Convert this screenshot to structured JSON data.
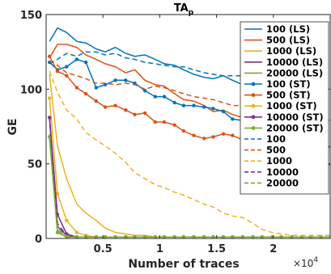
{
  "chart_data": {
    "type": "line",
    "title_main": "TA",
    "title_sub": "p",
    "xlabel": "Number of traces",
    "ylabel": "GE",
    "x_multiplier_base": "×10",
    "x_multiplier_exp": "4",
    "xlim": [
      0,
      25000
    ],
    "ylim": [
      0,
      150
    ],
    "xticks": [
      5000,
      10000,
      15000,
      20000
    ],
    "xtick_labels": [
      "0.5",
      "1",
      "1.5",
      "2"
    ],
    "yticks": [
      0,
      50,
      100,
      150
    ],
    "ytick_labels": [
      "0",
      "50",
      "100",
      "150"
    ],
    "legend_position": "upper-right",
    "series": [
      {
        "name": "100 (LS)",
        "color": "#0072BD",
        "dash": "solid",
        "marker": false,
        "x": [
          300,
          1000,
          1800,
          2700,
          3500,
          4400,
          5200,
          6100,
          7000,
          7800,
          8700,
          9600,
          10400,
          11300,
          12100,
          13000,
          13900,
          14700,
          15600,
          16400,
          17300,
          18200,
          19000,
          19900,
          20700,
          21600,
          22500,
          23300,
          24200,
          25000
        ],
        "y": [
          132,
          141,
          138,
          132,
          131,
          127,
          125,
          128,
          124,
          122,
          123,
          120,
          117,
          116,
          113,
          110,
          108,
          107,
          109,
          106,
          103,
          101,
          98,
          91,
          86,
          83,
          75,
          70,
          66,
          61
        ]
      },
      {
        "name": "500 (LS)",
        "color": "#D95319",
        "dash": "solid",
        "marker": false,
        "x": [
          300,
          1000,
          1800,
          2700,
          3500,
          4400,
          5200,
          6100,
          7000,
          7800,
          8700,
          9600,
          10400,
          11300,
          12100,
          13000,
          13900,
          14700,
          15600,
          16400,
          17300,
          18200,
          19000,
          19900,
          20700,
          21600,
          22500,
          23300,
          24200,
          25000
        ],
        "y": [
          121,
          130,
          130,
          128,
          123,
          120,
          117,
          115,
          111,
          113,
          106,
          103,
          102,
          97,
          93,
          92,
          89,
          85,
          86,
          83,
          81,
          77,
          76,
          74,
          71,
          69,
          62,
          58,
          52,
          49
        ]
      },
      {
        "name": "1000 (LS)",
        "color": "#EDB120",
        "dash": "solid",
        "marker": false,
        "x": [
          300,
          1000,
          1800,
          2700,
          3500,
          4400,
          5200,
          6100,
          7000,
          7800,
          8700,
          9600,
          10400,
          11300,
          12100,
          25000
        ],
        "y": [
          110,
          62,
          40,
          23,
          17,
          12,
          7,
          4,
          3,
          2,
          2,
          1,
          1,
          1,
          1,
          1
        ]
      },
      {
        "name": "10000 (LS)",
        "color": "#7E2F8E",
        "dash": "solid",
        "marker": false,
        "x": [
          300,
          1000,
          1800,
          2700,
          3500,
          25000
        ],
        "y": [
          80,
          8,
          2,
          1,
          1,
          1
        ]
      },
      {
        "name": "20000 (LS)",
        "color": "#77AC30",
        "dash": "solid",
        "marker": false,
        "x": [
          300,
          1000,
          1800,
          2700,
          25000
        ],
        "y": [
          67,
          5,
          1,
          1,
          1
        ]
      },
      {
        "name": "100 (ST)",
        "color": "#0072BD",
        "dash": "solid",
        "marker": true,
        "x": [
          300,
          1000,
          1800,
          2700,
          3500,
          4400,
          5200,
          6100,
          7000,
          7800,
          8700,
          9600,
          10400,
          11300,
          12100,
          13000,
          13900,
          14700,
          15600,
          16400,
          17300,
          18200,
          19000,
          19900,
          20700,
          21600,
          22500,
          23300,
          24200
        ],
        "y": [
          118,
          113,
          115,
          120,
          118,
          101,
          103,
          106,
          106,
          104,
          99,
          95,
          95,
          91,
          89,
          89,
          88,
          87,
          85,
          80,
          79,
          77,
          76,
          73,
          72,
          72,
          71,
          70,
          70
        ]
      },
      {
        "name": "500 (ST)",
        "color": "#D95319",
        "dash": "solid",
        "marker": true,
        "x": [
          300,
          1000,
          1800,
          2700,
          3500,
          4400,
          5200,
          6100,
          7000,
          7800,
          8700,
          9600,
          10400,
          11300,
          12100,
          13000,
          13900,
          14700,
          15600,
          16400,
          17300,
          18200,
          19000,
          19900,
          20700
        ],
        "y": [
          122,
          112,
          109,
          101,
          97,
          92,
          88,
          89,
          86,
          83,
          84,
          78,
          78,
          76,
          72,
          69,
          67,
          68,
          70,
          69,
          66,
          68,
          67,
          66,
          67
        ]
      },
      {
        "name": "1000 (ST)",
        "color": "#EDB120",
        "dash": "solid",
        "marker": true,
        "x": [
          300,
          1000,
          1800,
          2700,
          3500,
          4400,
          5200,
          6100,
          7000,
          25000
        ],
        "y": [
          94,
          30,
          12,
          4,
          2,
          1,
          1,
          1,
          1,
          1
        ]
      },
      {
        "name": "10000 (ST)",
        "color": "#7E2F8E",
        "dash": "solid",
        "marker": true,
        "x": [
          300,
          1000,
          1800,
          2700,
          3500,
          4400,
          5200,
          6100,
          7000,
          7800,
          8700,
          9600,
          10400,
          11300,
          12100,
          13000,
          13900,
          14700,
          15600,
          16400,
          17300,
          18200,
          19000,
          19900,
          20700,
          21600,
          22500,
          23300,
          24200
        ],
        "y": [
          81,
          16,
          3,
          1,
          1,
          1,
          1,
          1,
          1,
          1,
          1,
          1,
          1,
          1,
          1,
          1,
          1,
          1,
          1,
          1,
          1,
          1,
          1,
          1,
          1,
          1,
          1,
          1,
          1
        ]
      },
      {
        "name": "20000 (ST)",
        "color": "#77AC30",
        "dash": "solid",
        "marker": true,
        "x": [
          300,
          1000,
          1800,
          2700,
          3500,
          4400,
          5200,
          6100,
          7000,
          7800,
          8700,
          9600,
          10400,
          11300,
          12100,
          13000,
          13900,
          14700,
          15600,
          16400,
          17300,
          18200,
          19000,
          19900,
          20700,
          21600,
          22500,
          23300,
          24200
        ],
        "y": [
          68,
          4,
          1,
          1,
          1,
          1,
          1,
          1,
          1,
          1,
          1,
          1,
          1,
          1,
          1,
          1,
          1,
          1,
          1,
          1,
          1,
          1,
          1,
          1,
          1,
          1,
          1,
          1,
          1
        ]
      },
      {
        "name": "100",
        "color": "#0072BD",
        "dash": "dashed",
        "marker": false,
        "x": [
          300,
          1000,
          1800,
          2700,
          3500,
          4400,
          5200,
          6100,
          7000,
          7800,
          8700,
          9600,
          10400,
          11300,
          12100,
          13000,
          13900,
          14700,
          15600,
          16400,
          17300,
          18200,
          19000,
          19900,
          20700,
          21600,
          22500,
          23300,
          24200,
          25000
        ],
        "y": [
          117,
          120,
          124,
          122,
          125,
          125,
          123,
          124,
          121,
          120,
          118,
          117,
          116,
          115,
          115,
          113,
          111,
          110,
          109,
          109,
          109,
          110,
          110,
          109,
          110,
          108,
          108,
          107,
          107,
          106
        ]
      },
      {
        "name": "500",
        "color": "#D95319",
        "dash": "dashed",
        "marker": false,
        "x": [
          300,
          1000,
          1800,
          2700,
          3500,
          4400,
          5200,
          6100,
          7000,
          7800,
          8700,
          9600,
          10400,
          11300,
          12100,
          13000,
          13900,
          14700,
          15600,
          16400,
          17300,
          18200,
          19000,
          19900,
          20700,
          21600,
          22500,
          23300,
          24200,
          25000
        ],
        "y": [
          119,
          116,
          111,
          109,
          107,
          104,
          104,
          103,
          104,
          103,
          100,
          102,
          101,
          99,
          97,
          95,
          94,
          93,
          91,
          89,
          89,
          86,
          85,
          84,
          83,
          82,
          81,
          80,
          80,
          79
        ]
      },
      {
        "name": "1000",
        "color": "#EDB120",
        "dash": "dashed",
        "marker": false,
        "x": [
          300,
          1000,
          1800,
          2700,
          3500,
          4400,
          5200,
          6100,
          7000,
          7800,
          8700,
          9600,
          10400,
          11300,
          12100,
          13000,
          13900,
          14700,
          15600,
          16400,
          17300,
          18200,
          19000,
          19900,
          20700,
          21600,
          22500,
          23300,
          24200,
          25000
        ],
        "y": [
          112,
          98,
          86,
          80,
          71,
          66,
          62,
          57,
          51,
          44,
          40,
          36,
          34,
          31,
          29,
          26,
          23,
          21,
          17,
          15,
          14,
          10,
          6,
          4,
          3,
          2,
          2,
          2,
          2,
          2
        ]
      },
      {
        "name": "10000",
        "color": "#7E2F8E",
        "dash": "dashed",
        "marker": false,
        "x": [
          300,
          1000,
          1800,
          2700,
          3500,
          25000
        ],
        "y": [
          82,
          10,
          2,
          1,
          1,
          1
        ]
      },
      {
        "name": "20000",
        "color": "#77AC30",
        "dash": "dashed",
        "marker": false,
        "x": [
          300,
          1000,
          1800,
          2700,
          25000
        ],
        "y": [
          70,
          6,
          2,
          1,
          1
        ]
      }
    ]
  }
}
